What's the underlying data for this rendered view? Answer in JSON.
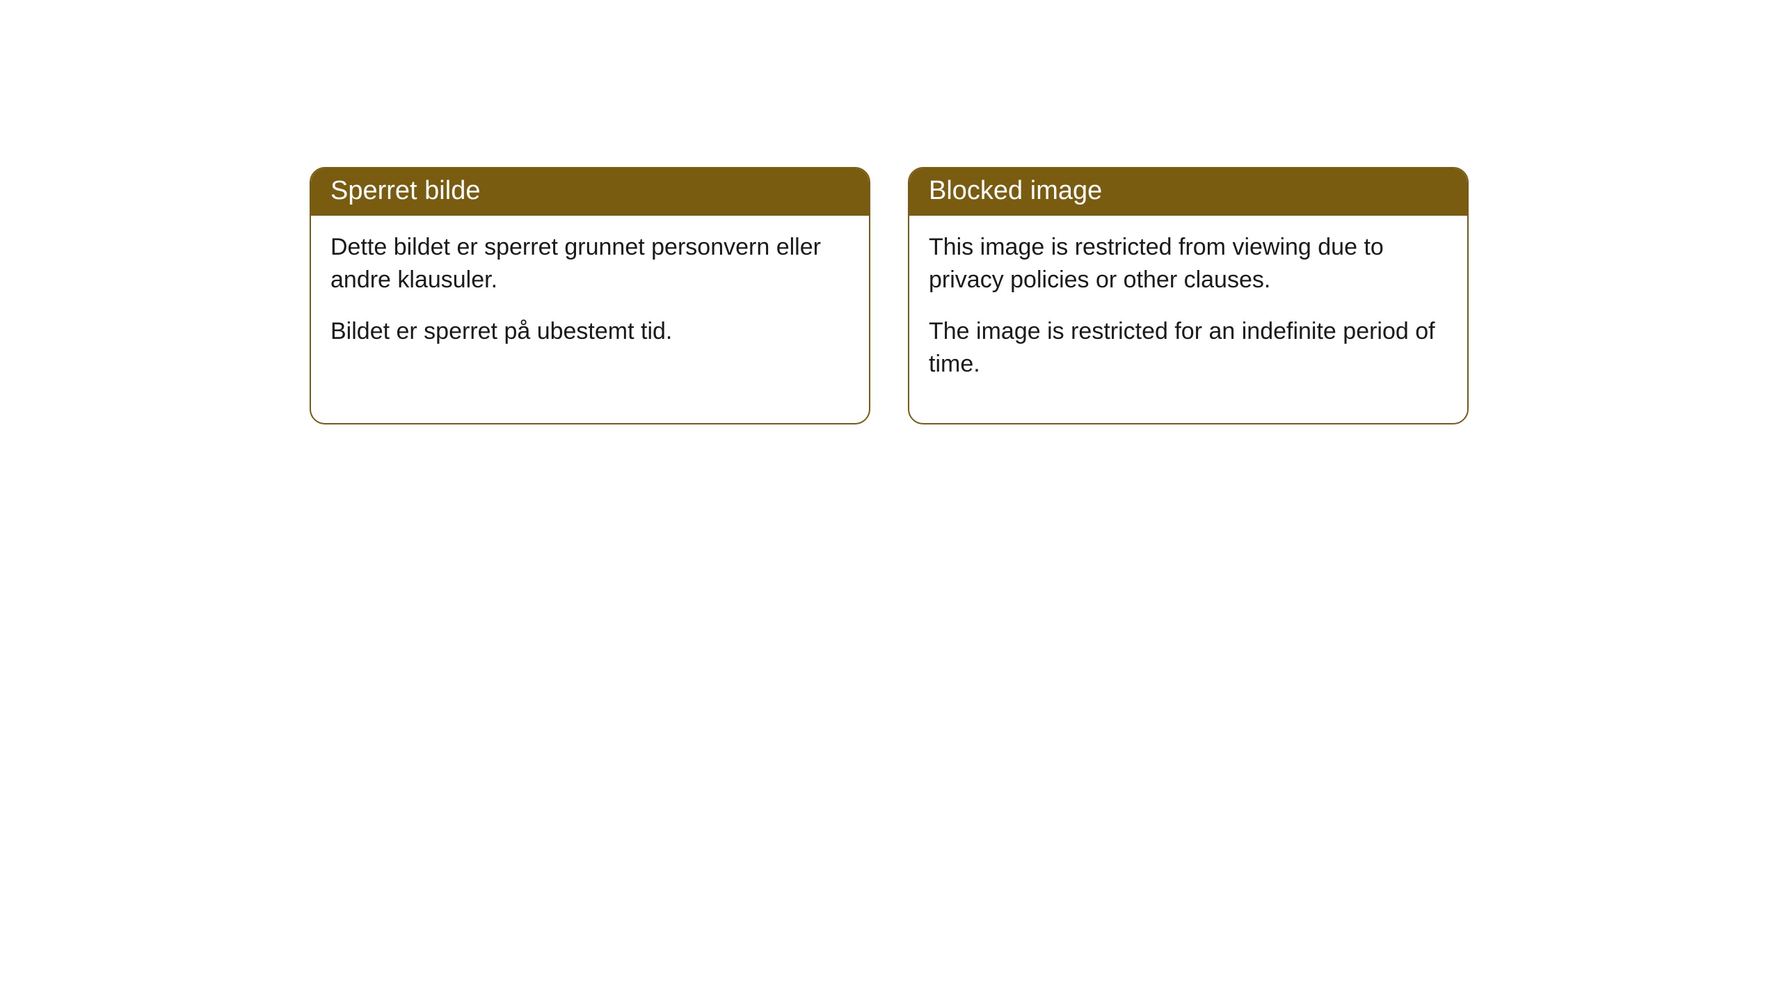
{
  "cards": [
    {
      "title": "Sperret bilde",
      "para1": "Dette bildet er sperret grunnet personvern eller andre klausuler.",
      "para2": "Bildet er sperret på ubestemt tid."
    },
    {
      "title": "Blocked image",
      "para1": "This image is restricted from viewing due to privacy policies or other clauses.",
      "para2": "The image is restricted for an indefinite period of time."
    }
  ],
  "style": {
    "header_bg": "#7a5c11",
    "header_text_color": "#ffffff",
    "border_color": "#7a5c11",
    "body_bg": "#ffffff",
    "body_text_color": "#1a1a1a",
    "border_radius": 22,
    "header_fontsize": 38,
    "body_fontsize": 34
  }
}
